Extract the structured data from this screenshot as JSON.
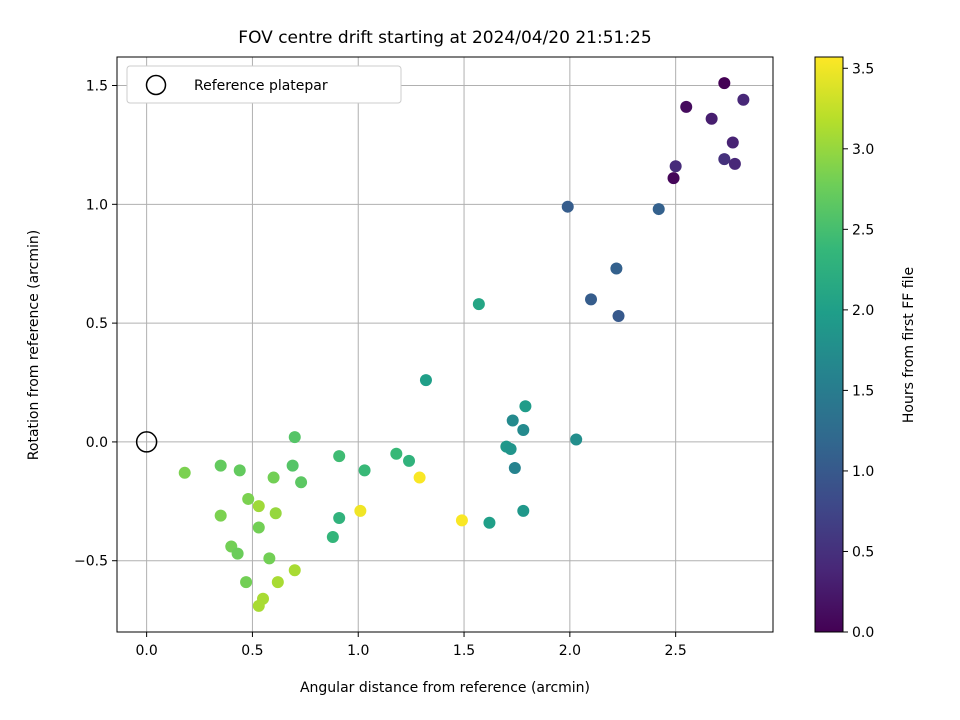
{
  "chart_data": {
    "type": "scatter",
    "title": "FOV centre drift starting at 2024/04/20 21:51:25",
    "xlabel": "Angular distance from reference (arcmin)",
    "ylabel": "Rotation from reference (arcmin)",
    "xlim": [
      -0.14,
      2.96
    ],
    "ylim": [
      -0.8,
      1.62
    ],
    "xticks": [
      0.0,
      0.5,
      1.0,
      1.5,
      2.0,
      2.5
    ],
    "xtick_labels": [
      "0.0",
      "0.5",
      "1.0",
      "1.5",
      "2.0",
      "2.5"
    ],
    "yticks": [
      -0.5,
      0.0,
      0.5,
      1.0,
      1.5
    ],
    "ytick_labels": [
      "−0.5",
      "0.0",
      "0.5",
      "1.0",
      "1.5"
    ],
    "grid": true,
    "legend": {
      "position": "top-left",
      "entries": [
        "Reference platepar"
      ]
    },
    "reference_point": {
      "x": 0.0,
      "y": 0.0,
      "label": "Reference platepar"
    },
    "colorbar": {
      "label": "Hours from first FF file",
      "min": 0.0,
      "max": 3.57,
      "ticks": [
        0.0,
        0.5,
        1.0,
        1.5,
        2.0,
        2.5,
        3.0,
        3.5
      ],
      "tick_labels": [
        "0.0",
        "0.5",
        "1.0",
        "1.5",
        "2.0",
        "2.5",
        "3.0",
        "3.5"
      ],
      "colormap": "viridis",
      "stops": [
        "#440154",
        "#482878",
        "#3e4989",
        "#31688e",
        "#26828e",
        "#1f9e89",
        "#35b779",
        "#6ece58",
        "#b5de2b",
        "#fde725"
      ]
    },
    "points": [
      {
        "x": 2.73,
        "y": 1.51,
        "c": 0.0
      },
      {
        "x": 2.55,
        "y": 1.41,
        "c": 0.1
      },
      {
        "x": 2.49,
        "y": 1.11,
        "c": 0.05
      },
      {
        "x": 2.82,
        "y": 1.44,
        "c": 0.4
      },
      {
        "x": 2.67,
        "y": 1.36,
        "c": 0.3
      },
      {
        "x": 2.77,
        "y": 1.26,
        "c": 0.35
      },
      {
        "x": 2.5,
        "y": 1.16,
        "c": 0.45
      },
      {
        "x": 2.73,
        "y": 1.19,
        "c": 0.5
      },
      {
        "x": 2.78,
        "y": 1.17,
        "c": 0.4
      },
      {
        "x": 1.99,
        "y": 0.99,
        "c": 1.05
      },
      {
        "x": 2.42,
        "y": 0.98,
        "c": 1.1
      },
      {
        "x": 2.22,
        "y": 0.73,
        "c": 1.1
      },
      {
        "x": 2.1,
        "y": 0.6,
        "c": 1.05
      },
      {
        "x": 2.23,
        "y": 0.53,
        "c": 1.0
      },
      {
        "x": 1.57,
        "y": 0.58,
        "c": 2.1
      },
      {
        "x": 1.32,
        "y": 0.26,
        "c": 2.0
      },
      {
        "x": 1.79,
        "y": 0.15,
        "c": 1.95
      },
      {
        "x": 1.73,
        "y": 0.09,
        "c": 1.7
      },
      {
        "x": 1.78,
        "y": 0.05,
        "c": 1.7
      },
      {
        "x": 2.03,
        "y": 0.01,
        "c": 1.75
      },
      {
        "x": 1.7,
        "y": -0.02,
        "c": 1.9
      },
      {
        "x": 1.72,
        "y": -0.03,
        "c": 1.85
      },
      {
        "x": 1.74,
        "y": -0.11,
        "c": 1.6
      },
      {
        "x": 1.78,
        "y": -0.29,
        "c": 1.9
      },
      {
        "x": 1.62,
        "y": -0.34,
        "c": 2.0
      },
      {
        "x": 1.29,
        "y": -0.15,
        "c": 3.55
      },
      {
        "x": 1.49,
        "y": -0.33,
        "c": 3.55
      },
      {
        "x": 1.01,
        "y": -0.29,
        "c": 3.5
      },
      {
        "x": 1.24,
        "y": -0.08,
        "c": 2.3
      },
      {
        "x": 1.18,
        "y": -0.05,
        "c": 2.4
      },
      {
        "x": 1.03,
        "y": -0.12,
        "c": 2.4
      },
      {
        "x": 0.91,
        "y": -0.06,
        "c": 2.45
      },
      {
        "x": 0.91,
        "y": -0.32,
        "c": 2.3
      },
      {
        "x": 0.88,
        "y": -0.4,
        "c": 2.35
      },
      {
        "x": 0.7,
        "y": 0.02,
        "c": 2.6
      },
      {
        "x": 0.69,
        "y": -0.1,
        "c": 2.6
      },
      {
        "x": 0.73,
        "y": -0.17,
        "c": 2.65
      },
      {
        "x": 0.6,
        "y": -0.15,
        "c": 2.8
      },
      {
        "x": 0.44,
        "y": -0.12,
        "c": 2.7
      },
      {
        "x": 0.35,
        "y": -0.1,
        "c": 2.7
      },
      {
        "x": 0.18,
        "y": -0.13,
        "c": 2.85
      },
      {
        "x": 0.48,
        "y": -0.24,
        "c": 2.85
      },
      {
        "x": 0.53,
        "y": -0.27,
        "c": 3.05
      },
      {
        "x": 0.61,
        "y": -0.3,
        "c": 3.0
      },
      {
        "x": 0.35,
        "y": -0.31,
        "c": 2.85
      },
      {
        "x": 0.53,
        "y": -0.36,
        "c": 2.8
      },
      {
        "x": 0.4,
        "y": -0.44,
        "c": 2.8
      },
      {
        "x": 0.43,
        "y": -0.47,
        "c": 2.75
      },
      {
        "x": 0.58,
        "y": -0.49,
        "c": 2.8
      },
      {
        "x": 0.7,
        "y": -0.54,
        "c": 3.1
      },
      {
        "x": 0.47,
        "y": -0.59,
        "c": 2.8
      },
      {
        "x": 0.62,
        "y": -0.59,
        "c": 3.1
      },
      {
        "x": 0.55,
        "y": -0.66,
        "c": 3.1
      },
      {
        "x": 0.53,
        "y": -0.69,
        "c": 3.1
      }
    ]
  }
}
